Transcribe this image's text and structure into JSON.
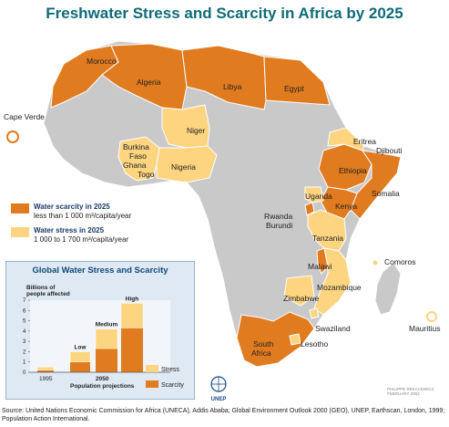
{
  "title": "Freshwater Stress and Scarcity in Africa by 2025",
  "colors": {
    "scarcity": "#e07b20",
    "stress": "#fdd480",
    "other": "#c9c9c9",
    "border": "#ffffff",
    "title": "#0e6b78"
  },
  "map": {
    "scarcity_countries": [
      "Morocco",
      "Algeria",
      "Libya",
      "Egypt",
      "Ethiopia",
      "Somalia",
      "Kenya",
      "Rwanda",
      "Burundi",
      "Malawi",
      "South Africa",
      "Lesotho",
      "Cape Verde"
    ],
    "stress_countries": [
      "Niger",
      "Burkina Faso",
      "Ghana",
      "Togo",
      "Nigeria",
      "Eritrea",
      "Djibouti",
      "Uganda",
      "Tanzania",
      "Mozambique",
      "Zimbabwe",
      "Swaziland",
      "Comoros",
      "Mauritius"
    ],
    "labels": {
      "cape_verde": "Cape Verde",
      "morocco": "Morocco",
      "algeria": "Algeria",
      "libya": "Libya",
      "egypt": "Egypt",
      "niger": "Niger",
      "burkina": "Burkina",
      "faso": "Faso",
      "ghana": "Ghana",
      "togo": "Togo",
      "nigeria": "Nigeria",
      "eritrea": "Eritrea",
      "djibouti": "Djibouti",
      "ethiopia": "Ethiopia",
      "somalia": "Somalia",
      "uganda": "Uganda",
      "kenya": "Kenya",
      "rwanda": "Rwanda",
      "burundi": "Burundi",
      "tanzania": "Tanzania",
      "comoros": "Comoros",
      "malawi": "Malawi",
      "mozambique": "Mozambique",
      "zimbabwe": "Zimbabwe",
      "mauritius": "Mauritius",
      "swaziland": "Swaziland",
      "south": "South",
      "africa": "Africa",
      "lesotho": "Lesotho"
    }
  },
  "legend": {
    "scarcity_title": "Water scarcity in 2025",
    "scarcity_desc": "less than 1 000 m³/capita/year",
    "stress_title": "Water stress in 2025",
    "stress_desc": "1 000 to 1 700 m³/capita/year"
  },
  "inset": {
    "title": "Global Water Stress and Scarcity",
    "ylabel_line1": "Billions of",
    "ylabel_line2": "people affected",
    "yticks": [
      "0",
      "1",
      "2",
      "3",
      "4",
      "5",
      "6",
      "7"
    ],
    "x_1995": "1995",
    "x_2050": "2050",
    "x_proj": "Population projections",
    "legend_stress": "Stress",
    "legend_scarcity": "Scarcity"
  },
  "chart_data": {
    "type": "bar",
    "title": "Global Water Stress and Scarcity",
    "ylabel": "Billions of people affected",
    "ylim": [
      0,
      7
    ],
    "categories": [
      "1995",
      "Low",
      "Medium",
      "High"
    ],
    "group_labels": [
      "1995",
      "2050"
    ],
    "xlabel": "Population projections",
    "series": [
      {
        "name": "Scarcity",
        "values": [
          0.2,
          1.0,
          2.3,
          4.3
        ]
      },
      {
        "name": "Stress",
        "values": [
          0.3,
          1.0,
          1.9,
          2.4
        ]
      }
    ]
  },
  "org": "UNEP",
  "credit_line1": "PHILIPPE REKACEWICZ",
  "credit_line2": "FEBRUARY 2002",
  "source": "Source: United Nations Economic Commission for Africa (UNECA), Addis Ababa; Global Environment Outlook 2000 (GEO), UNEP, Earthscan, London, 1999; Population Action International."
}
